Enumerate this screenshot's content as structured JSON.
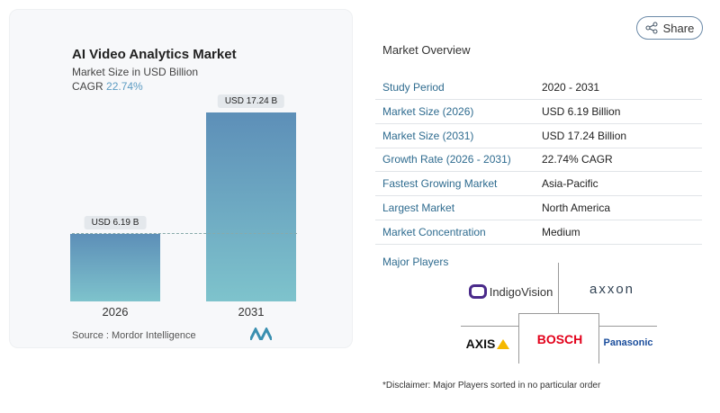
{
  "header": {
    "share_label": "Share"
  },
  "chart_data": {
    "type": "bar",
    "title": "AI Video Analytics Market",
    "subtitle": "Market Size in USD Billion",
    "cagr_label": "CAGR",
    "cagr_value": "22.74%",
    "categories": [
      "2026",
      "2031"
    ],
    "values": [
      6.19,
      17.24
    ],
    "data_labels": [
      "USD 6.19 B",
      "USD 17.24 B"
    ],
    "colors": [
      "#5d8fb8",
      "#7ec3cc"
    ],
    "source": "Source :  Mordor Intelligence"
  },
  "overview": {
    "title": "Market Overview",
    "rows": [
      {
        "k": "Study Period",
        "v": "2020 - 2031"
      },
      {
        "k": "Market Size (2026)",
        "v": "USD 6.19 Billion"
      },
      {
        "k": "Market Size (2031)",
        "v": "USD 17.24 Billion"
      },
      {
        "k": "Growth Rate (2026 - 2031)",
        "v": "22.74% CAGR"
      },
      {
        "k": "Fastest Growing Market",
        "v": "Asia-Pacific"
      },
      {
        "k": "Largest Market",
        "v": "North America"
      },
      {
        "k": "Market Concentration",
        "v": "Medium"
      }
    ],
    "major_players_label": "Major Players",
    "players": [
      "IndigoVision",
      "axxon",
      "AXIS",
      "BOSCH",
      "Panasonic"
    ],
    "disclaimer": "*Disclaimer: Major Players sorted in no particular order"
  }
}
